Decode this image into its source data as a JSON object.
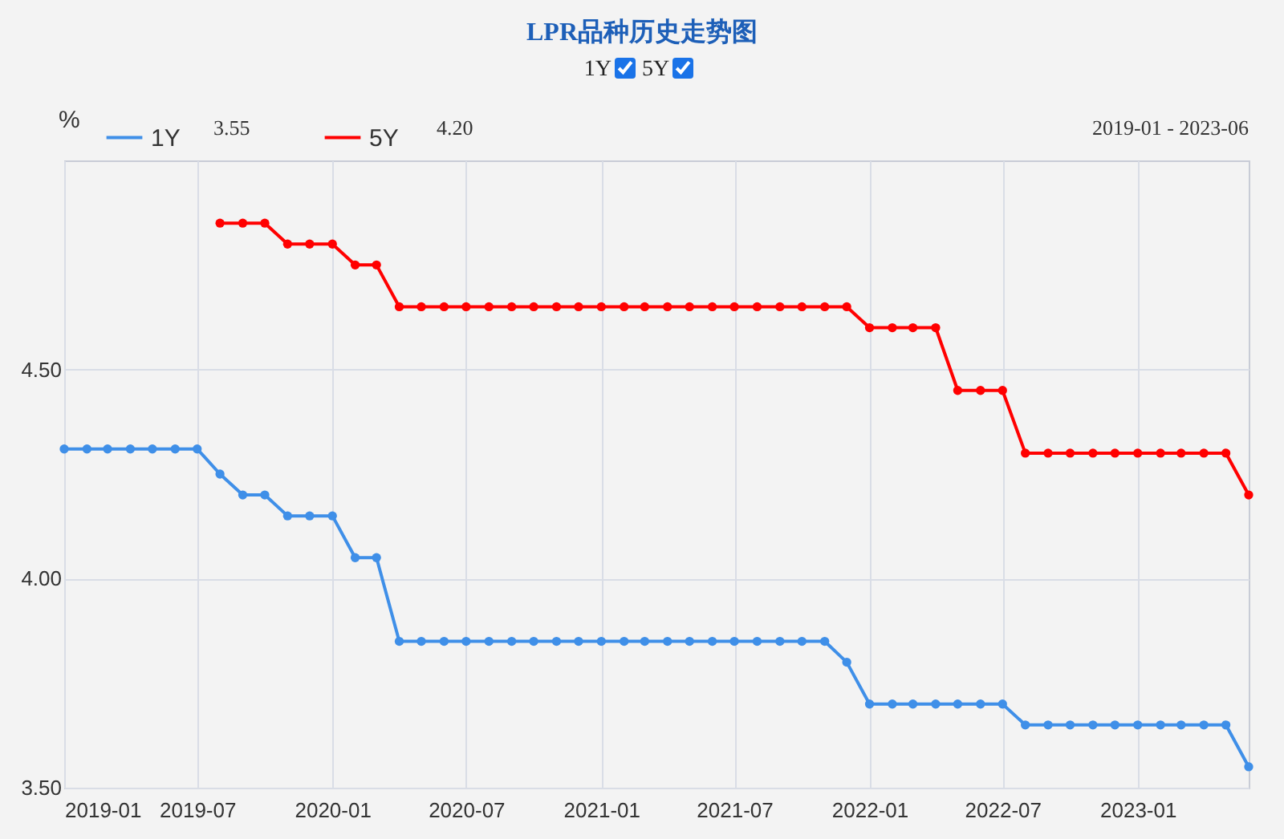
{
  "chart_data": {
    "type": "line",
    "title": "LPR品种历史走势图",
    "ylabel": "%",
    "x": [
      "2019-01",
      "2019-02",
      "2019-03",
      "2019-04",
      "2019-05",
      "2019-06",
      "2019-07",
      "2019-08",
      "2019-09",
      "2019-10",
      "2019-11",
      "2019-12",
      "2020-01",
      "2020-02",
      "2020-03",
      "2020-04",
      "2020-05",
      "2020-06",
      "2020-07",
      "2020-08",
      "2020-09",
      "2020-10",
      "2020-11",
      "2020-12",
      "2021-01",
      "2021-02",
      "2021-03",
      "2021-04",
      "2021-05",
      "2021-06",
      "2021-07",
      "2021-08",
      "2021-09",
      "2021-10",
      "2021-11",
      "2021-12",
      "2022-01",
      "2022-02",
      "2022-03",
      "2022-04",
      "2022-05",
      "2022-06",
      "2022-07",
      "2022-08",
      "2022-09",
      "2022-10",
      "2022-11",
      "2022-12",
      "2023-01",
      "2023-02",
      "2023-03",
      "2023-04",
      "2023-05",
      "2023-06"
    ],
    "series": [
      {
        "name": "1Y",
        "color": "#3f8fe8",
        "values": [
          4.31,
          4.31,
          4.31,
          4.31,
          4.31,
          4.31,
          4.31,
          4.25,
          4.2,
          4.2,
          4.15,
          4.15,
          4.15,
          4.05,
          4.05,
          3.85,
          3.85,
          3.85,
          3.85,
          3.85,
          3.85,
          3.85,
          3.85,
          3.85,
          3.85,
          3.85,
          3.85,
          3.85,
          3.85,
          3.85,
          3.85,
          3.85,
          3.85,
          3.85,
          3.85,
          3.8,
          3.7,
          3.7,
          3.7,
          3.7,
          3.7,
          3.7,
          3.7,
          3.65,
          3.65,
          3.65,
          3.65,
          3.65,
          3.65,
          3.65,
          3.65,
          3.65,
          3.65,
          3.55
        ]
      },
      {
        "name": "5Y",
        "color": "#ff0000",
        "values": [
          null,
          null,
          null,
          null,
          null,
          null,
          null,
          4.85,
          4.85,
          4.85,
          4.8,
          4.8,
          4.8,
          4.75,
          4.75,
          4.65,
          4.65,
          4.65,
          4.65,
          4.65,
          4.65,
          4.65,
          4.65,
          4.65,
          4.65,
          4.65,
          4.65,
          4.65,
          4.65,
          4.65,
          4.65,
          4.65,
          4.65,
          4.65,
          4.65,
          4.65,
          4.6,
          4.6,
          4.6,
          4.6,
          4.45,
          4.45,
          4.45,
          4.3,
          4.3,
          4.3,
          4.3,
          4.3,
          4.3,
          4.3,
          4.3,
          4.3,
          4.3,
          4.2
        ]
      }
    ],
    "xlim": [
      "2019-01",
      "2023-06"
    ],
    "xticks": [
      "2019-01",
      "2019-07",
      "2020-01",
      "2020-07",
      "2021-01",
      "2021-07",
      "2022-01",
      "2022-07",
      "2023-01"
    ],
    "ylim": [
      3.5,
      5.0
    ],
    "yticks": [
      {
        "value": 3.5,
        "label": "3.50"
      },
      {
        "value": 4.0,
        "label": "4.00"
      },
      {
        "value": 4.5,
        "label": "4.50"
      }
    ],
    "annotations": [
      "3.55",
      "4.20",
      "2019-01 - 2023-06"
    ],
    "grid": true,
    "legend": "top left",
    "marker": "circle",
    "line_style": "solid"
  }
}
